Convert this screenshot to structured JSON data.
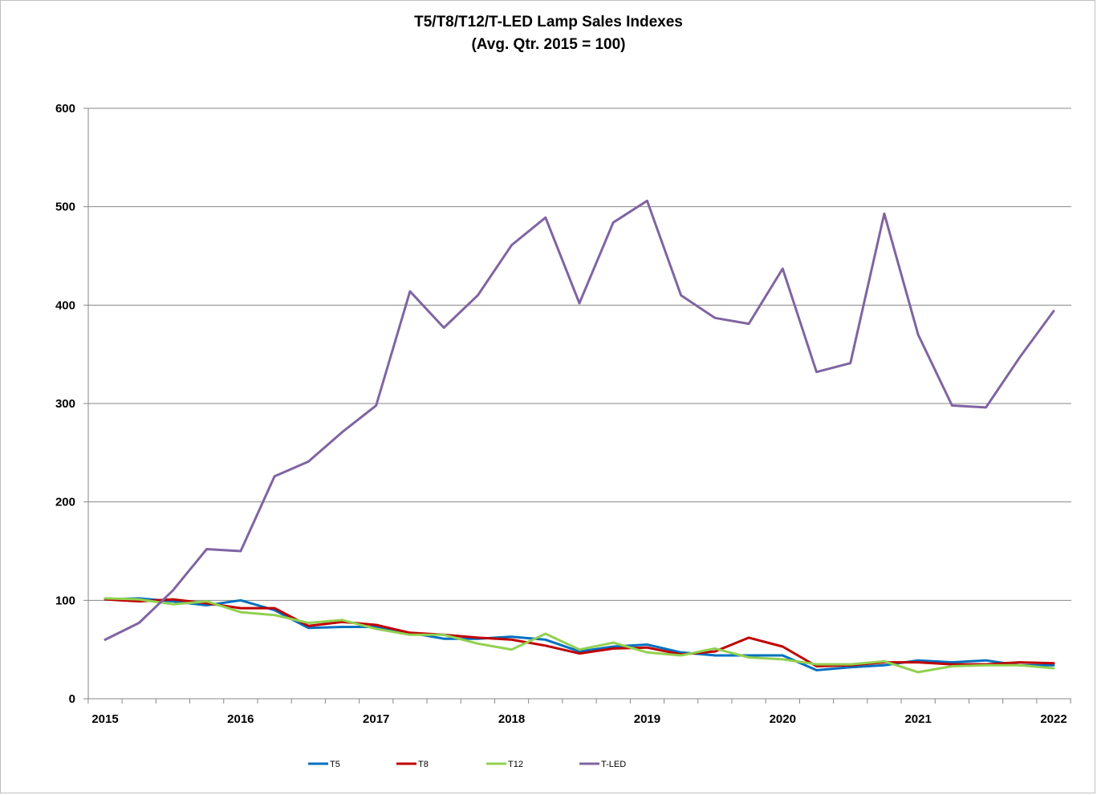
{
  "chart_data": {
    "type": "line",
    "title": "T5/T8/T12/T-LED Lamp Sales Indexes",
    "subtitle": "(Avg. Qtr. 2015 = 100)",
    "xlabel": "",
    "ylabel": "",
    "ylim": [
      0,
      600
    ],
    "yticks": [
      0,
      100,
      200,
      300,
      400,
      500,
      600
    ],
    "xlim": [
      2015,
      2022
    ],
    "xticks": [
      "2015",
      "2016",
      "2017",
      "2018",
      "2019",
      "2020",
      "2021",
      "2022"
    ],
    "grid": "horizontal",
    "legend_position": "bottom",
    "x": [
      2015.0,
      2015.25,
      2015.5,
      2015.75,
      2016.0,
      2016.25,
      2016.5,
      2016.75,
      2017.0,
      2017.25,
      2017.5,
      2017.75,
      2018.0,
      2018.25,
      2018.5,
      2018.75,
      2019.0,
      2019.25,
      2019.5,
      2019.75,
      2020.0,
      2020.25,
      2020.5,
      2020.75,
      2021.0,
      2021.25,
      2021.5,
      2021.75,
      2022.0
    ],
    "series": [
      {
        "name": "T5",
        "color": "#0070c0",
        "values": [
          101,
          102,
          99,
          95,
          100,
          90,
          72,
          73,
          73,
          67,
          61,
          61,
          63,
          60,
          48,
          53,
          55,
          47,
          44,
          44,
          44,
          29,
          32,
          34,
          39,
          37,
          39,
          34,
          34
        ]
      },
      {
        "name": "T8",
        "color": "#c00000",
        "values": [
          101,
          99,
          101,
          97,
          92,
          92,
          74,
          78,
          75,
          67,
          65,
          62,
          60,
          54,
          46,
          51,
          52,
          45,
          48,
          62,
          53,
          33,
          34,
          37,
          37,
          35,
          35,
          37,
          36
        ]
      },
      {
        "name": "T12",
        "color": "#92d050",
        "values": [
          102,
          101,
          96,
          99,
          88,
          85,
          77,
          80,
          71,
          65,
          65,
          56,
          50,
          66,
          50,
          57,
          47,
          44,
          51,
          42,
          40,
          35,
          35,
          38,
          27,
          33,
          34,
          34,
          31
        ]
      },
      {
        "name": "T-LED",
        "color": "#8064a2",
        "values": [
          60,
          77,
          110,
          152,
          150,
          226,
          241,
          271,
          298,
          414,
          377,
          410,
          461,
          489,
          402,
          484,
          506,
          410,
          387,
          381,
          437,
          332,
          341,
          493,
          370,
          298,
          296,
          347,
          394
        ]
      }
    ]
  }
}
